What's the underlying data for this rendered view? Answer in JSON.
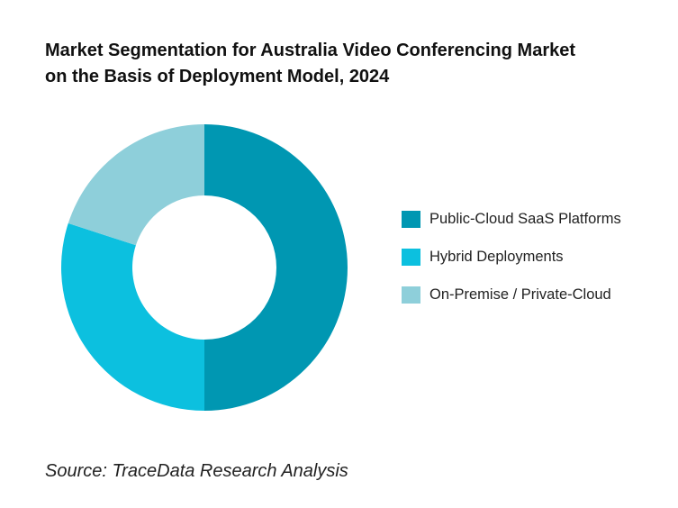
{
  "chart_data": {
    "type": "pie",
    "donut": true,
    "title_lines": [
      "Market Segmentation for Australia Video Conferencing Market",
      "on the Basis of Deployment Model, 2024"
    ],
    "categories": [
      "Public-Cloud SaaS Platforms",
      "Hybrid Deployments",
      "On-Premise / Private-Cloud"
    ],
    "values": [
      50,
      30,
      20
    ],
    "colors": [
      "#0097B2",
      "#0CC0DF",
      "#8ECFDA"
    ],
    "legend_position": "right",
    "source": "Source: TraceData Research Analysis"
  }
}
